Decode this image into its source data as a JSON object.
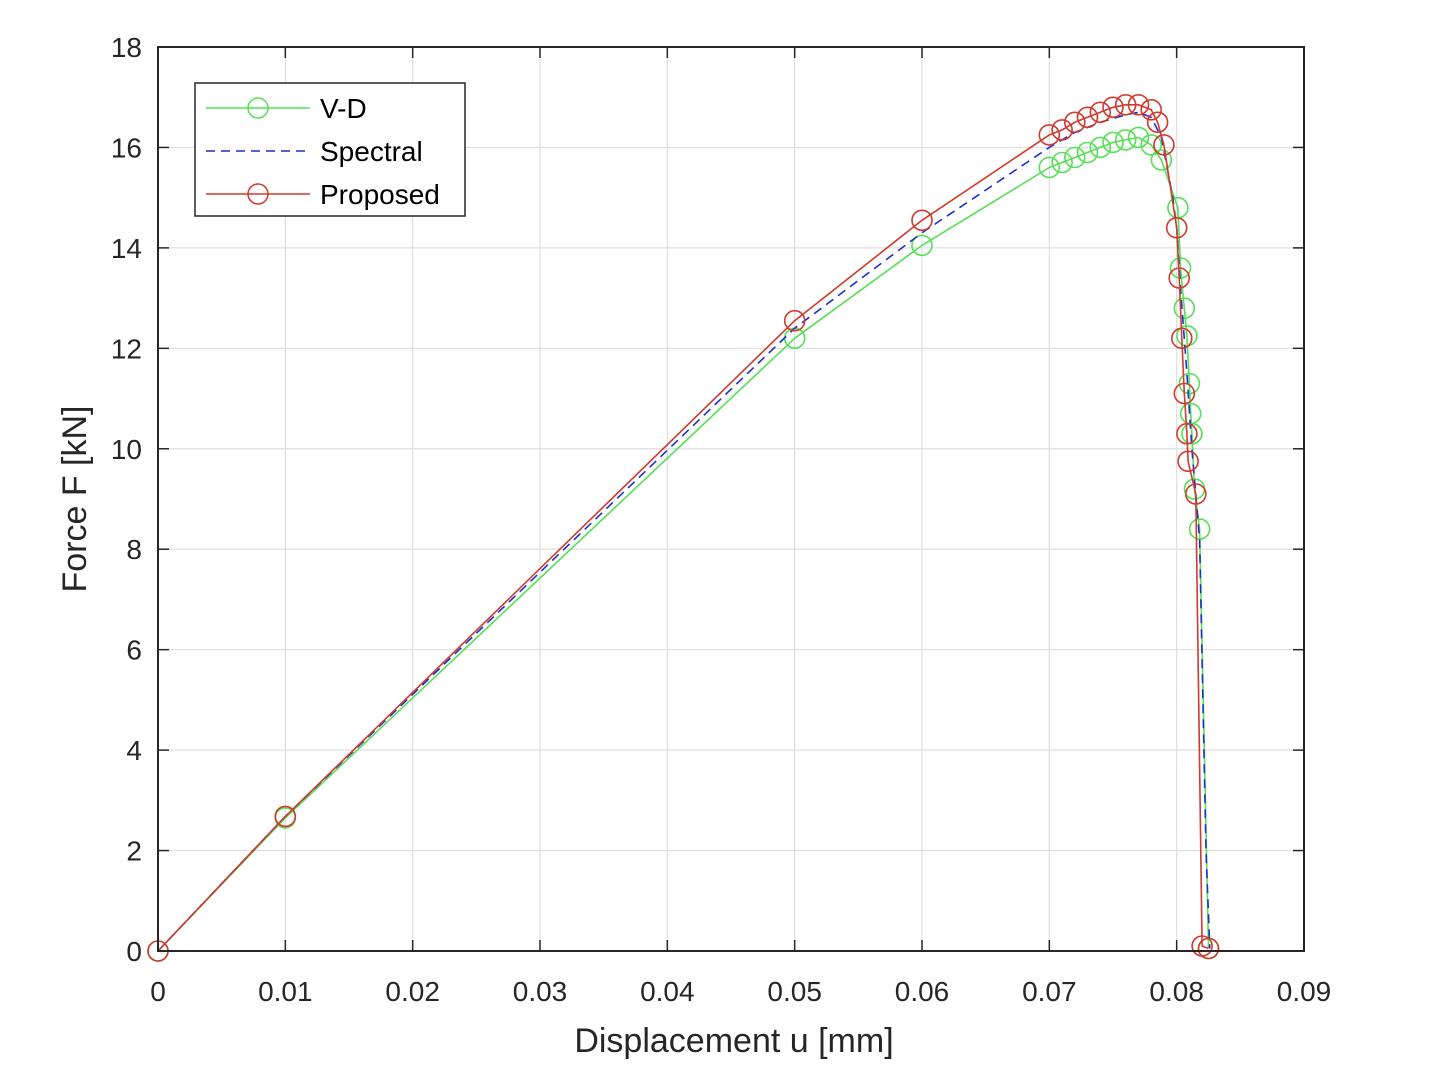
{
  "chart_data": {
    "type": "line",
    "xlabel": "Displacement u [mm]",
    "ylabel": "Force F [kN]",
    "xlim": [
      0,
      0.09
    ],
    "ylim": [
      0,
      18
    ],
    "xticks": [
      0,
      0.01,
      0.02,
      0.03,
      0.04,
      0.05,
      0.06,
      0.07,
      0.08,
      0.09
    ],
    "xtick_labels": [
      "0",
      "0.01",
      "0.02",
      "0.03",
      "0.04",
      "0.05",
      "0.06",
      "0.07",
      "0.08",
      "0.09"
    ],
    "yticks": [
      0,
      2,
      4,
      6,
      8,
      10,
      12,
      14,
      16,
      18
    ],
    "ytick_labels": [
      "0",
      "2",
      "4",
      "6",
      "8",
      "10",
      "12",
      "14",
      "16",
      "18"
    ],
    "grid": true,
    "legend_position": "top-left",
    "series": [
      {
        "name": "V-D",
        "color": "#55e055",
        "line_style": "solid",
        "marker": "circle",
        "points": [
          [
            0,
            0
          ],
          [
            0.01,
            2.65
          ],
          [
            0.05,
            12.2
          ],
          [
            0.06,
            14.05
          ],
          [
            0.07,
            15.6
          ],
          [
            0.071,
            15.7
          ],
          [
            0.072,
            15.8
          ],
          [
            0.073,
            15.9
          ],
          [
            0.074,
            16.0
          ],
          [
            0.075,
            16.1
          ],
          [
            0.076,
            16.15
          ],
          [
            0.077,
            16.2
          ],
          [
            0.078,
            16.05
          ],
          [
            0.0788,
            15.75
          ],
          [
            0.0801,
            14.8
          ],
          [
            0.0803,
            13.6
          ],
          [
            0.0806,
            12.8
          ],
          [
            0.0808,
            12.25
          ],
          [
            0.081,
            11.3
          ],
          [
            0.0811,
            10.7
          ],
          [
            0.0812,
            10.3
          ],
          [
            0.0814,
            9.2
          ],
          [
            0.0818,
            8.4
          ],
          [
            0.0825,
            0.05
          ]
        ]
      },
      {
        "name": "Spectral",
        "color": "#1f2fd0",
        "line_style": "dashed",
        "marker": "none",
        "points": [
          [
            0,
            0
          ],
          [
            0.01,
            2.68
          ],
          [
            0.05,
            12.4
          ],
          [
            0.06,
            14.3
          ],
          [
            0.07,
            16.0
          ],
          [
            0.072,
            16.3
          ],
          [
            0.074,
            16.5
          ],
          [
            0.076,
            16.65
          ],
          [
            0.077,
            16.7
          ],
          [
            0.078,
            16.6
          ],
          [
            0.0788,
            16.2
          ],
          [
            0.0797,
            15.0
          ],
          [
            0.08,
            14.4
          ],
          [
            0.0803,
            13.2
          ],
          [
            0.0808,
            11.5
          ],
          [
            0.0812,
            10.0
          ],
          [
            0.0818,
            8.2
          ],
          [
            0.0823,
            2.0
          ],
          [
            0.0826,
            0.05
          ]
        ]
      },
      {
        "name": "Proposed",
        "color": "#d03a2e",
        "line_style": "solid",
        "marker": "circle",
        "points": [
          [
            0,
            0
          ],
          [
            0.01,
            2.68
          ],
          [
            0.05,
            12.55
          ],
          [
            0.06,
            14.55
          ],
          [
            0.07,
            16.25
          ],
          [
            0.071,
            16.35
          ],
          [
            0.072,
            16.5
          ],
          [
            0.073,
            16.6
          ],
          [
            0.074,
            16.7
          ],
          [
            0.075,
            16.8
          ],
          [
            0.076,
            16.85
          ],
          [
            0.077,
            16.85
          ],
          [
            0.078,
            16.75
          ],
          [
            0.0785,
            16.5
          ],
          [
            0.079,
            16.05
          ],
          [
            0.08,
            14.4
          ],
          [
            0.0802,
            13.4
          ],
          [
            0.0804,
            12.2
          ],
          [
            0.0806,
            11.1
          ],
          [
            0.0808,
            10.3
          ],
          [
            0.0809,
            9.75
          ],
          [
            0.0815,
            9.1
          ],
          [
            0.082,
            0.1
          ],
          [
            0.0825,
            0.05
          ]
        ]
      }
    ]
  }
}
